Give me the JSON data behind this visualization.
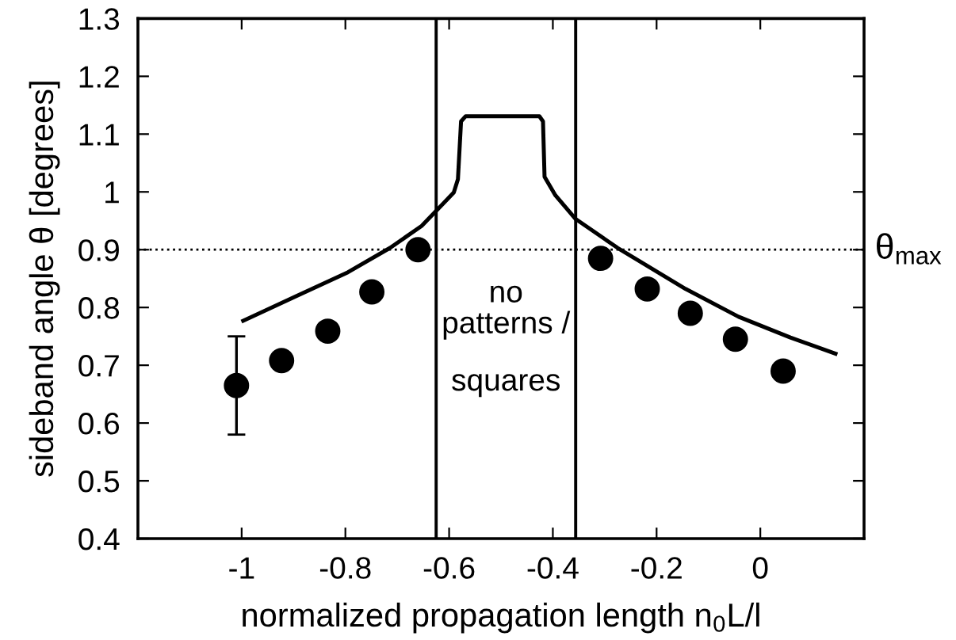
{
  "chart_data": {
    "type": "scatter",
    "xlabel": "normalized propagation length n$_{0}$L/l",
    "ylabel": "sideband angle θ [degrees]",
    "xlim": [
      -1.2,
      0.2
    ],
    "xticks": [
      -1,
      -0.8,
      -0.6,
      -0.4,
      -0.2,
      0
    ],
    "ylim": [
      0.4,
      1.3
    ],
    "yticks": [
      0.4,
      0.5,
      0.6,
      0.7,
      0.8,
      0.9,
      1,
      1.1,
      1.2,
      1.3
    ],
    "grid": false,
    "legend": false,
    "series": [
      {
        "type": "line",
        "color": "#000000",
        "line_style": "solid",
        "marker": "none",
        "x": [
          -0.997,
          -0.896,
          -0.795,
          -0.714,
          -0.653,
          -0.625,
          -0.591,
          -0.583,
          -0.577,
          -0.568,
          -0.426,
          -0.419,
          -0.416,
          -0.395,
          -0.356,
          -0.275,
          -0.144,
          -0.042,
          0.058,
          0.145
        ],
        "values": [
          0.777,
          0.819,
          0.861,
          0.903,
          0.941,
          0.967,
          0.999,
          1.022,
          1.122,
          1.131,
          1.131,
          1.122,
          1.026,
          0.994,
          0.953,
          0.903,
          0.832,
          0.784,
          0.748,
          0.72
        ]
      },
      {
        "color": "#000000",
        "marker": "circle",
        "x": [
          -1.01,
          -0.923,
          -0.834,
          -0.749,
          -0.66,
          -0.308,
          -0.218,
          -0.135,
          -0.048,
          0.044
        ],
        "values": [
          0.665,
          0.708,
          0.759,
          0.827,
          0.9,
          0.885,
          0.832,
          0.79,
          0.745,
          0.69
        ],
        "errors": [
          [
            0.58,
            0.75
          ],
          null,
          null,
          null,
          null,
          null,
          null,
          null,
          null,
          null
        ]
      }
    ],
    "ref_lines": [
      {
        "axis": "y",
        "value": 0.9,
        "label": "θ$_{max}$",
        "line_style": "dotted",
        "color": "#000000"
      },
      {
        "axis": "x",
        "value": -0.625,
        "line_style": "solid",
        "color": "#000000"
      },
      {
        "axis": "x",
        "value": -0.356,
        "line_style": "solid",
        "color": "#000000"
      }
    ],
    "annotations": [
      "no\npatterns /",
      "squares"
    ]
  }
}
